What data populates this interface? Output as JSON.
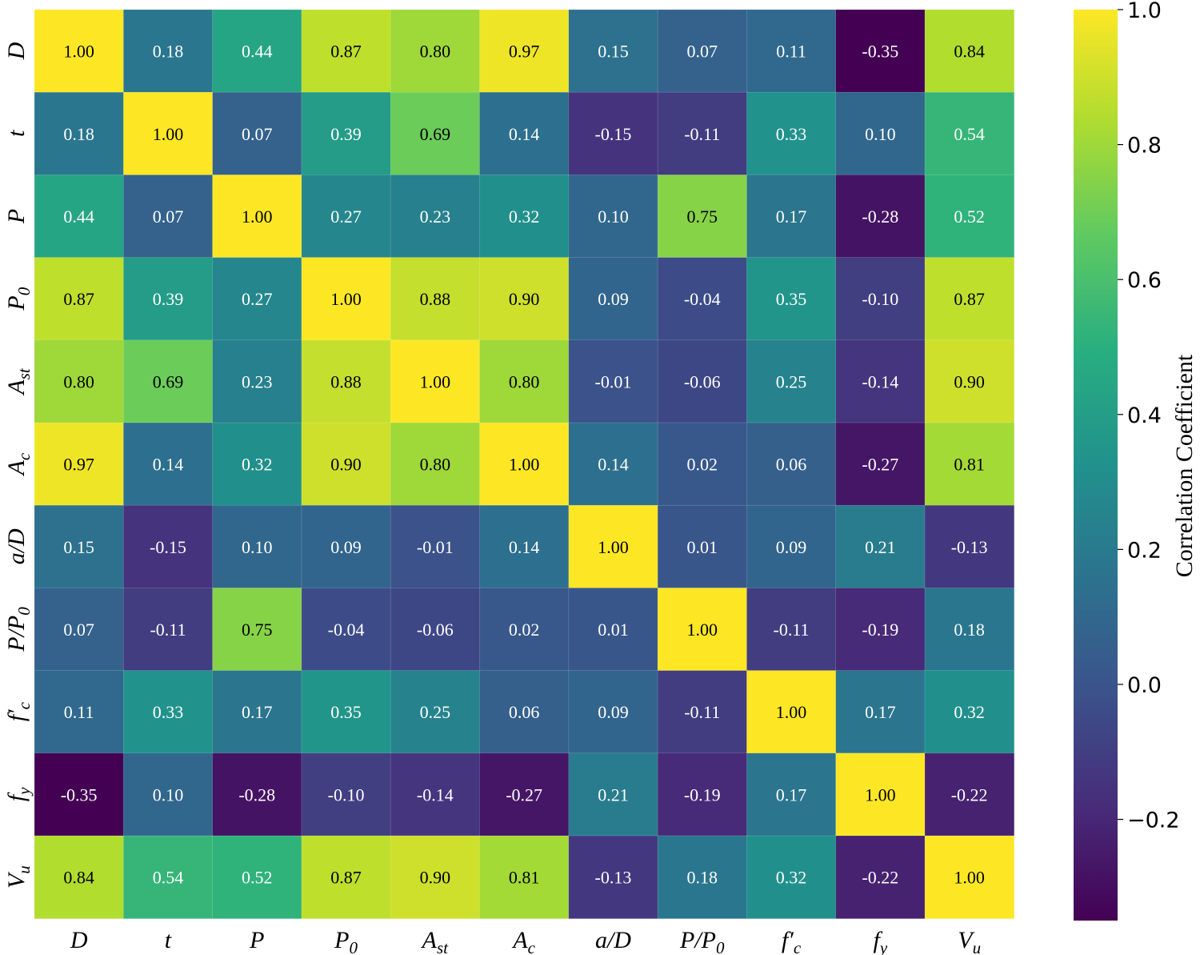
{
  "chart_data": {
    "type": "heatmap",
    "title": "",
    "colormap": "viridis",
    "vmin": -0.35,
    "vmax": 1.0,
    "labels": [
      {
        "base": "D",
        "sub": ""
      },
      {
        "base": "t",
        "sub": ""
      },
      {
        "base": "P",
        "sub": ""
      },
      {
        "base": "P",
        "sub": "0"
      },
      {
        "base": "A",
        "sub": "st"
      },
      {
        "base": "A",
        "sub": "c"
      },
      {
        "base": "a/D",
        "sub": ""
      },
      {
        "base": "P/P",
        "sub": "0"
      },
      {
        "base": "f′",
        "sub": "c"
      },
      {
        "base": "f",
        "sub": "y"
      },
      {
        "base": "V",
        "sub": "u"
      }
    ],
    "matrix": [
      [
        1.0,
        0.18,
        0.44,
        0.87,
        0.8,
        0.97,
        0.15,
        0.07,
        0.11,
        -0.35,
        0.84
      ],
      [
        0.18,
        1.0,
        0.07,
        0.39,
        0.69,
        0.14,
        -0.15,
        -0.11,
        0.33,
        0.1,
        0.54
      ],
      [
        0.44,
        0.07,
        1.0,
        0.27,
        0.23,
        0.32,
        0.1,
        0.75,
        0.17,
        -0.28,
        0.52
      ],
      [
        0.87,
        0.39,
        0.27,
        1.0,
        0.88,
        0.9,
        0.09,
        -0.04,
        0.35,
        -0.1,
        0.87
      ],
      [
        0.8,
        0.69,
        0.23,
        0.88,
        1.0,
        0.8,
        -0.01,
        -0.06,
        0.25,
        -0.14,
        0.9
      ],
      [
        0.97,
        0.14,
        0.32,
        0.9,
        0.8,
        1.0,
        0.14,
        0.02,
        0.06,
        -0.27,
        0.81
      ],
      [
        0.15,
        -0.15,
        0.1,
        0.09,
        -0.01,
        0.14,
        1.0,
        0.01,
        0.09,
        0.21,
        -0.13
      ],
      [
        0.07,
        -0.11,
        0.75,
        -0.04,
        -0.06,
        0.02,
        0.01,
        1.0,
        -0.11,
        -0.19,
        0.18
      ],
      [
        0.11,
        0.33,
        0.17,
        0.35,
        0.25,
        0.06,
        0.09,
        -0.11,
        1.0,
        0.17,
        0.32
      ],
      [
        -0.35,
        0.1,
        -0.28,
        -0.1,
        -0.14,
        -0.27,
        0.21,
        -0.19,
        0.17,
        1.0,
        -0.22
      ],
      [
        0.84,
        0.54,
        0.52,
        0.87,
        0.9,
        0.81,
        -0.13,
        0.18,
        0.32,
        -0.22,
        1.0
      ]
    ],
    "colorbar": {
      "label": "Correlation Coefficient",
      "ticks": [
        -0.2,
        0.0,
        0.2,
        0.4,
        0.6,
        0.8,
        1.0
      ],
      "tick_labels": [
        "−0.2",
        "0.0",
        "0.2",
        "0.4",
        "0.6",
        "0.8",
        "1.0"
      ]
    }
  }
}
